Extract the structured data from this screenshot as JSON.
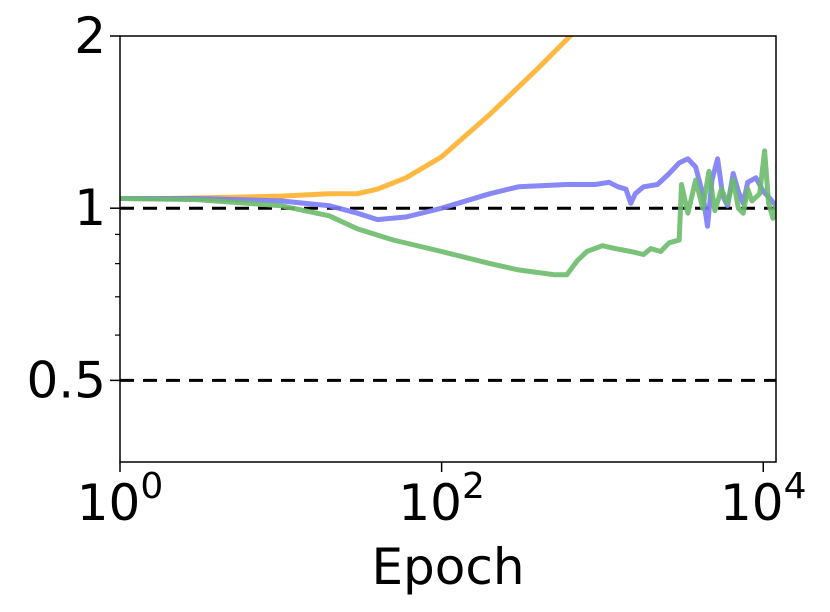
{
  "chart_data": {
    "type": "line",
    "xlabel": "Epoch",
    "ylabel": "",
    "x_scale": "log",
    "y_scale": "log",
    "xlim": [
      1,
      12000
    ],
    "ylim": [
      0.36,
      2
    ],
    "x_ticks": [
      {
        "value": 1,
        "base": "10",
        "exp": "0"
      },
      {
        "value": 100,
        "base": "10",
        "exp": "2"
      },
      {
        "value": 10000,
        "base": "10",
        "exp": "4"
      }
    ],
    "y_ticks": [
      {
        "value": 2,
        "label": "2"
      },
      {
        "value": 1,
        "label": "1"
      },
      {
        "value": 0.5,
        "label": "0.5"
      }
    ],
    "y_minor_ticks": [
      0.6,
      0.7,
      0.8,
      0.9
    ],
    "reference_lines": [
      1,
      0.5
    ],
    "series": [
      {
        "color": "#FFB02E",
        "points": [
          [
            1,
            1.04
          ],
          [
            2,
            1.04
          ],
          [
            5,
            1.045
          ],
          [
            10,
            1.05
          ],
          [
            20,
            1.06
          ],
          [
            30,
            1.06
          ],
          [
            40,
            1.08
          ],
          [
            60,
            1.13
          ],
          [
            100,
            1.23
          ],
          [
            200,
            1.46
          ],
          [
            400,
            1.76
          ],
          [
            700,
            2.06
          ]
        ]
      },
      {
        "color": "#7B7BF7",
        "points": [
          [
            1,
            1.04
          ],
          [
            3,
            1.04
          ],
          [
            10,
            1.03
          ],
          [
            20,
            1.01
          ],
          [
            30,
            0.98
          ],
          [
            40,
            0.955
          ],
          [
            60,
            0.965
          ],
          [
            100,
            1.0
          ],
          [
            200,
            1.06
          ],
          [
            300,
            1.09
          ],
          [
            600,
            1.1
          ],
          [
            900,
            1.1
          ],
          [
            1100,
            1.11
          ],
          [
            1250,
            1.09
          ],
          [
            1400,
            1.08
          ],
          [
            1500,
            1.02
          ],
          [
            1600,
            1.06
          ],
          [
            1800,
            1.09
          ],
          [
            2200,
            1.1
          ],
          [
            2600,
            1.15
          ],
          [
            3000,
            1.2
          ],
          [
            3400,
            1.22
          ],
          [
            3800,
            1.18
          ],
          [
            4200,
            1.06
          ],
          [
            4500,
            0.93
          ],
          [
            4800,
            1.12
          ],
          [
            5200,
            1.22
          ],
          [
            5600,
            1.05
          ],
          [
            6000,
            1.01
          ],
          [
            6500,
            1.15
          ],
          [
            7000,
            1.07
          ],
          [
            7500,
            1.02
          ],
          [
            8000,
            1.11
          ],
          [
            9000,
            1.13
          ],
          [
            10000,
            1.07
          ],
          [
            11000,
            1.04
          ],
          [
            12000,
            1.01
          ]
        ]
      },
      {
        "color": "#6CBA6C",
        "points": [
          [
            1,
            1.04
          ],
          [
            3,
            1.035
          ],
          [
            10,
            1.01
          ],
          [
            20,
            0.97
          ],
          [
            30,
            0.92
          ],
          [
            50,
            0.88
          ],
          [
            100,
            0.84
          ],
          [
            200,
            0.8
          ],
          [
            300,
            0.78
          ],
          [
            500,
            0.765
          ],
          [
            600,
            0.765
          ],
          [
            700,
            0.81
          ],
          [
            800,
            0.84
          ],
          [
            1000,
            0.86
          ],
          [
            1200,
            0.85
          ],
          [
            1500,
            0.84
          ],
          [
            1800,
            0.83
          ],
          [
            2000,
            0.85
          ],
          [
            2300,
            0.84
          ],
          [
            2600,
            0.87
          ],
          [
            3000,
            0.88
          ],
          [
            3100,
            1.1
          ],
          [
            3400,
            0.98
          ],
          [
            3800,
            1.12
          ],
          [
            4200,
            1.0
          ],
          [
            4600,
            1.16
          ],
          [
            5000,
            0.99
          ],
          [
            5500,
            1.08
          ],
          [
            6000,
            1.02
          ],
          [
            6500,
            1.12
          ],
          [
            7000,
            1.0
          ],
          [
            7500,
            0.98
          ],
          [
            8000,
            1.08
          ],
          [
            8500,
            1.03
          ],
          [
            9500,
            1.06
          ],
          [
            10200,
            1.26
          ],
          [
            10800,
            1.02
          ],
          [
            11500,
            0.96
          ],
          [
            12000,
            1.01
          ]
        ]
      }
    ]
  }
}
